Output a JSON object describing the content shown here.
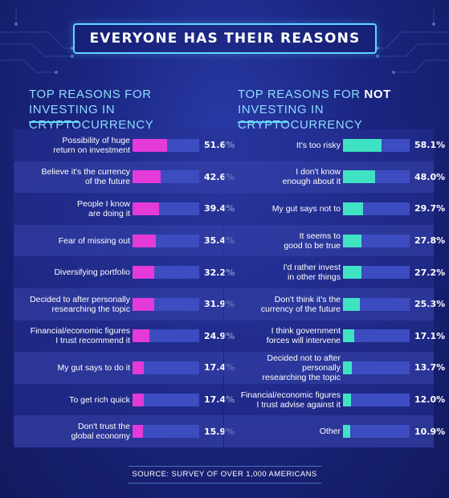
{
  "title": "EVERYONE HAS THEIR REASONS",
  "left_heading": "TOP REASONS FOR INVESTING IN CRYPTOCURRENCY",
  "right_heading": {
    "pre": "TOP REASONS FOR ",
    "emph": "NOT",
    "post": " INVESTING IN CRYPTOCURRENCY"
  },
  "source": "SOURCE: SURVEY OF OVER 1,000 AMERICANS",
  "colors": {
    "invest": "#e33ad8",
    "not_invest": "#3fe3c4",
    "track": "#3d4cc0"
  },
  "chart_data": [
    {
      "type": "bar",
      "orientation": "horizontal",
      "title": "TOP REASONS FOR INVESTING IN CRYPTOCURRENCY",
      "xlim": [
        0,
        100
      ],
      "categories": [
        "Possibility of huge return on investment",
        "Believe it's the currency of the future",
        "People I know are doing it",
        "Fear of missing out",
        "Diversifying portfolio",
        "Decided to after personally researching the topic",
        "Financial/economic figures I trust recommend it",
        "My gut says to do it",
        "To get rich quick",
        "Don't trust the global economy"
      ],
      "label_lines": [
        [
          "Possibility of huge",
          "return on investment"
        ],
        [
          "Believe it's the currency",
          "of the future"
        ],
        [
          "People I know",
          "are doing it"
        ],
        [
          "Fear of missing out"
        ],
        [
          "Diversifying portfolio"
        ],
        [
          "Decided to after personally",
          "researching the topic"
        ],
        [
          "Financial/economic figures",
          "I trust recommend it"
        ],
        [
          "My gut says to do it"
        ],
        [
          "To get rich quick"
        ],
        [
          "Don't trust the",
          "global economy"
        ]
      ],
      "values": [
        51.6,
        42.6,
        39.4,
        35.4,
        32.2,
        31.9,
        24.9,
        17.4,
        17.4,
        15.9
      ],
      "value_labels": [
        "51.6%",
        "42.6%",
        "39.4%",
        "35.4%",
        "32.2%",
        "31.9%",
        "24.9%",
        "17.4%",
        "17.4%",
        "15.9%"
      ]
    },
    {
      "type": "bar",
      "orientation": "horizontal",
      "title": "TOP REASONS FOR NOT INVESTING IN CRYPTOCURRENCY",
      "xlim": [
        0,
        100
      ],
      "categories": [
        "It's too risky",
        "I don't know enough about it",
        "My gut says not to",
        "It seems to good to be true",
        "I'd rather invest in other things",
        "Don't think it's the currency of the future",
        "I think government forces will intervene",
        "Decided not to after personally researching the topic",
        "Financial/economic figures I trust advise against it",
        "Other"
      ],
      "label_lines": [
        [
          "It's too risky"
        ],
        [
          "I don't know",
          "enough about it"
        ],
        [
          "My gut says not to"
        ],
        [
          "It seems to",
          "good to be true"
        ],
        [
          "I'd rather invest",
          "in other things"
        ],
        [
          "Don't think it's the",
          "currency of the future"
        ],
        [
          "I think government",
          "forces will intervene"
        ],
        [
          "Decided not to after personally",
          "researching the topic"
        ],
        [
          "Financial/economic figures",
          "I trust advise against it"
        ],
        [
          "Other"
        ]
      ],
      "values": [
        58.1,
        48.0,
        29.7,
        27.8,
        27.2,
        25.3,
        17.1,
        13.7,
        12.0,
        10.9
      ],
      "value_labels": [
        "58.1%",
        "48.0%",
        "29.7%",
        "27.8%",
        "27.2%",
        "25.3%",
        "17.1%",
        "13.7%",
        "12.0%",
        "10.9%"
      ]
    }
  ]
}
